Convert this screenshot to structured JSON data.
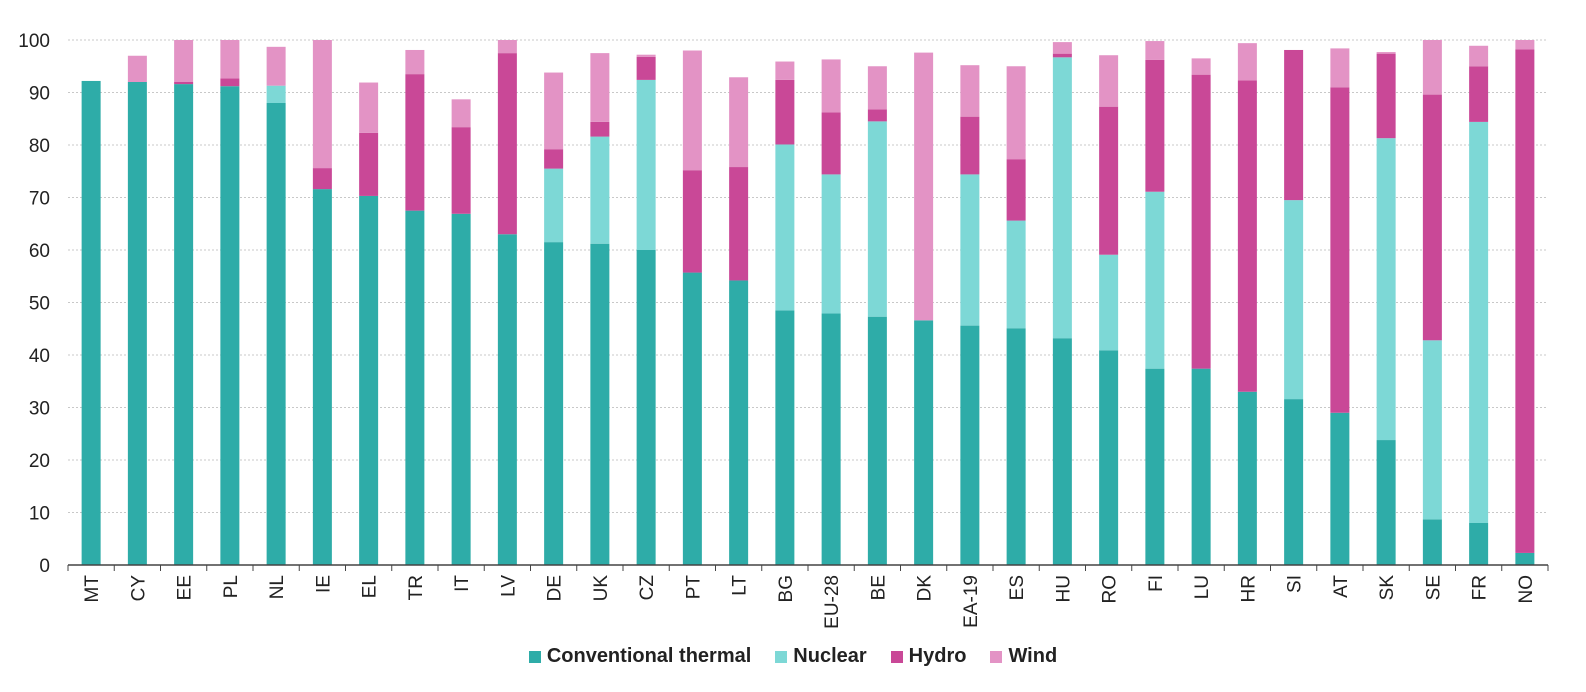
{
  "chart_data": {
    "type": "bar",
    "stacked": true,
    "categories": [
      "MT",
      "CY",
      "EE",
      "PL",
      "NL",
      "IE",
      "EL",
      "TR",
      "IT",
      "LV",
      "DE",
      "UK",
      "CZ",
      "PT",
      "LT",
      "BG",
      "EU-28",
      "BE",
      "DK",
      "EA-19",
      "ES",
      "HU",
      "RO",
      "FI",
      "LU",
      "HR",
      "SI",
      "AT",
      "SK",
      "SE",
      "FR",
      "NO"
    ],
    "series": [
      {
        "name": "Conventional thermal",
        "color": "#2eaca8",
        "values": [
          92.2,
          92,
          91.6,
          91.2,
          88,
          71.6,
          70.3,
          67.5,
          66.9,
          63,
          61.5,
          61.2,
          60,
          55.7,
          54.2,
          48.5,
          47.9,
          47.3,
          46.6,
          45.6,
          45.1,
          43.2,
          40.9,
          37.4,
          37.4,
          33,
          31.6,
          29,
          23.8,
          8.7,
          8,
          2.3
        ]
      },
      {
        "name": "Nuclear",
        "color": "#7dd8d6",
        "values": [
          0,
          0,
          0,
          0,
          3.3,
          0,
          0,
          0,
          0,
          0,
          14,
          20.4,
          32.4,
          0,
          0,
          31.6,
          26.5,
          37.2,
          0,
          28.8,
          20.5,
          53.5,
          18.2,
          33.7,
          0,
          0,
          37.9,
          0,
          57.5,
          34.1,
          76.4,
          0
        ]
      },
      {
        "name": "Hydro",
        "color": "#c94897",
        "values": [
          0,
          0,
          0.4,
          1.5,
          0,
          4,
          12,
          26,
          16.5,
          34.5,
          3.7,
          2.8,
          4.4,
          19.5,
          21.6,
          12.3,
          11.8,
          2.3,
          0,
          11,
          11.7,
          0.7,
          28.2,
          25.1,
          56,
          59.3,
          28.6,
          62,
          16.1,
          46.8,
          10.6,
          95.9
        ]
      },
      {
        "name": "Wind",
        "color": "#e393c5",
        "values": [
          0,
          5,
          8,
          7.3,
          7.4,
          24.4,
          9.6,
          4.6,
          5.3,
          2.5,
          14.6,
          13.1,
          0.4,
          22.8,
          17.1,
          3.5,
          10.1,
          8.2,
          51,
          9.8,
          17.7,
          2.2,
          9.8,
          3.6,
          3.1,
          7.1,
          0,
          7.4,
          0.3,
          10.4,
          3.9,
          1.8
        ]
      }
    ],
    "ylim": [
      0,
      100
    ],
    "yticks": [
      0,
      10,
      20,
      30,
      40,
      50,
      60,
      70,
      80,
      90,
      100
    ],
    "grid": true,
    "legend": "bottom",
    "title": "",
    "xlabel": "",
    "ylabel": ""
  }
}
